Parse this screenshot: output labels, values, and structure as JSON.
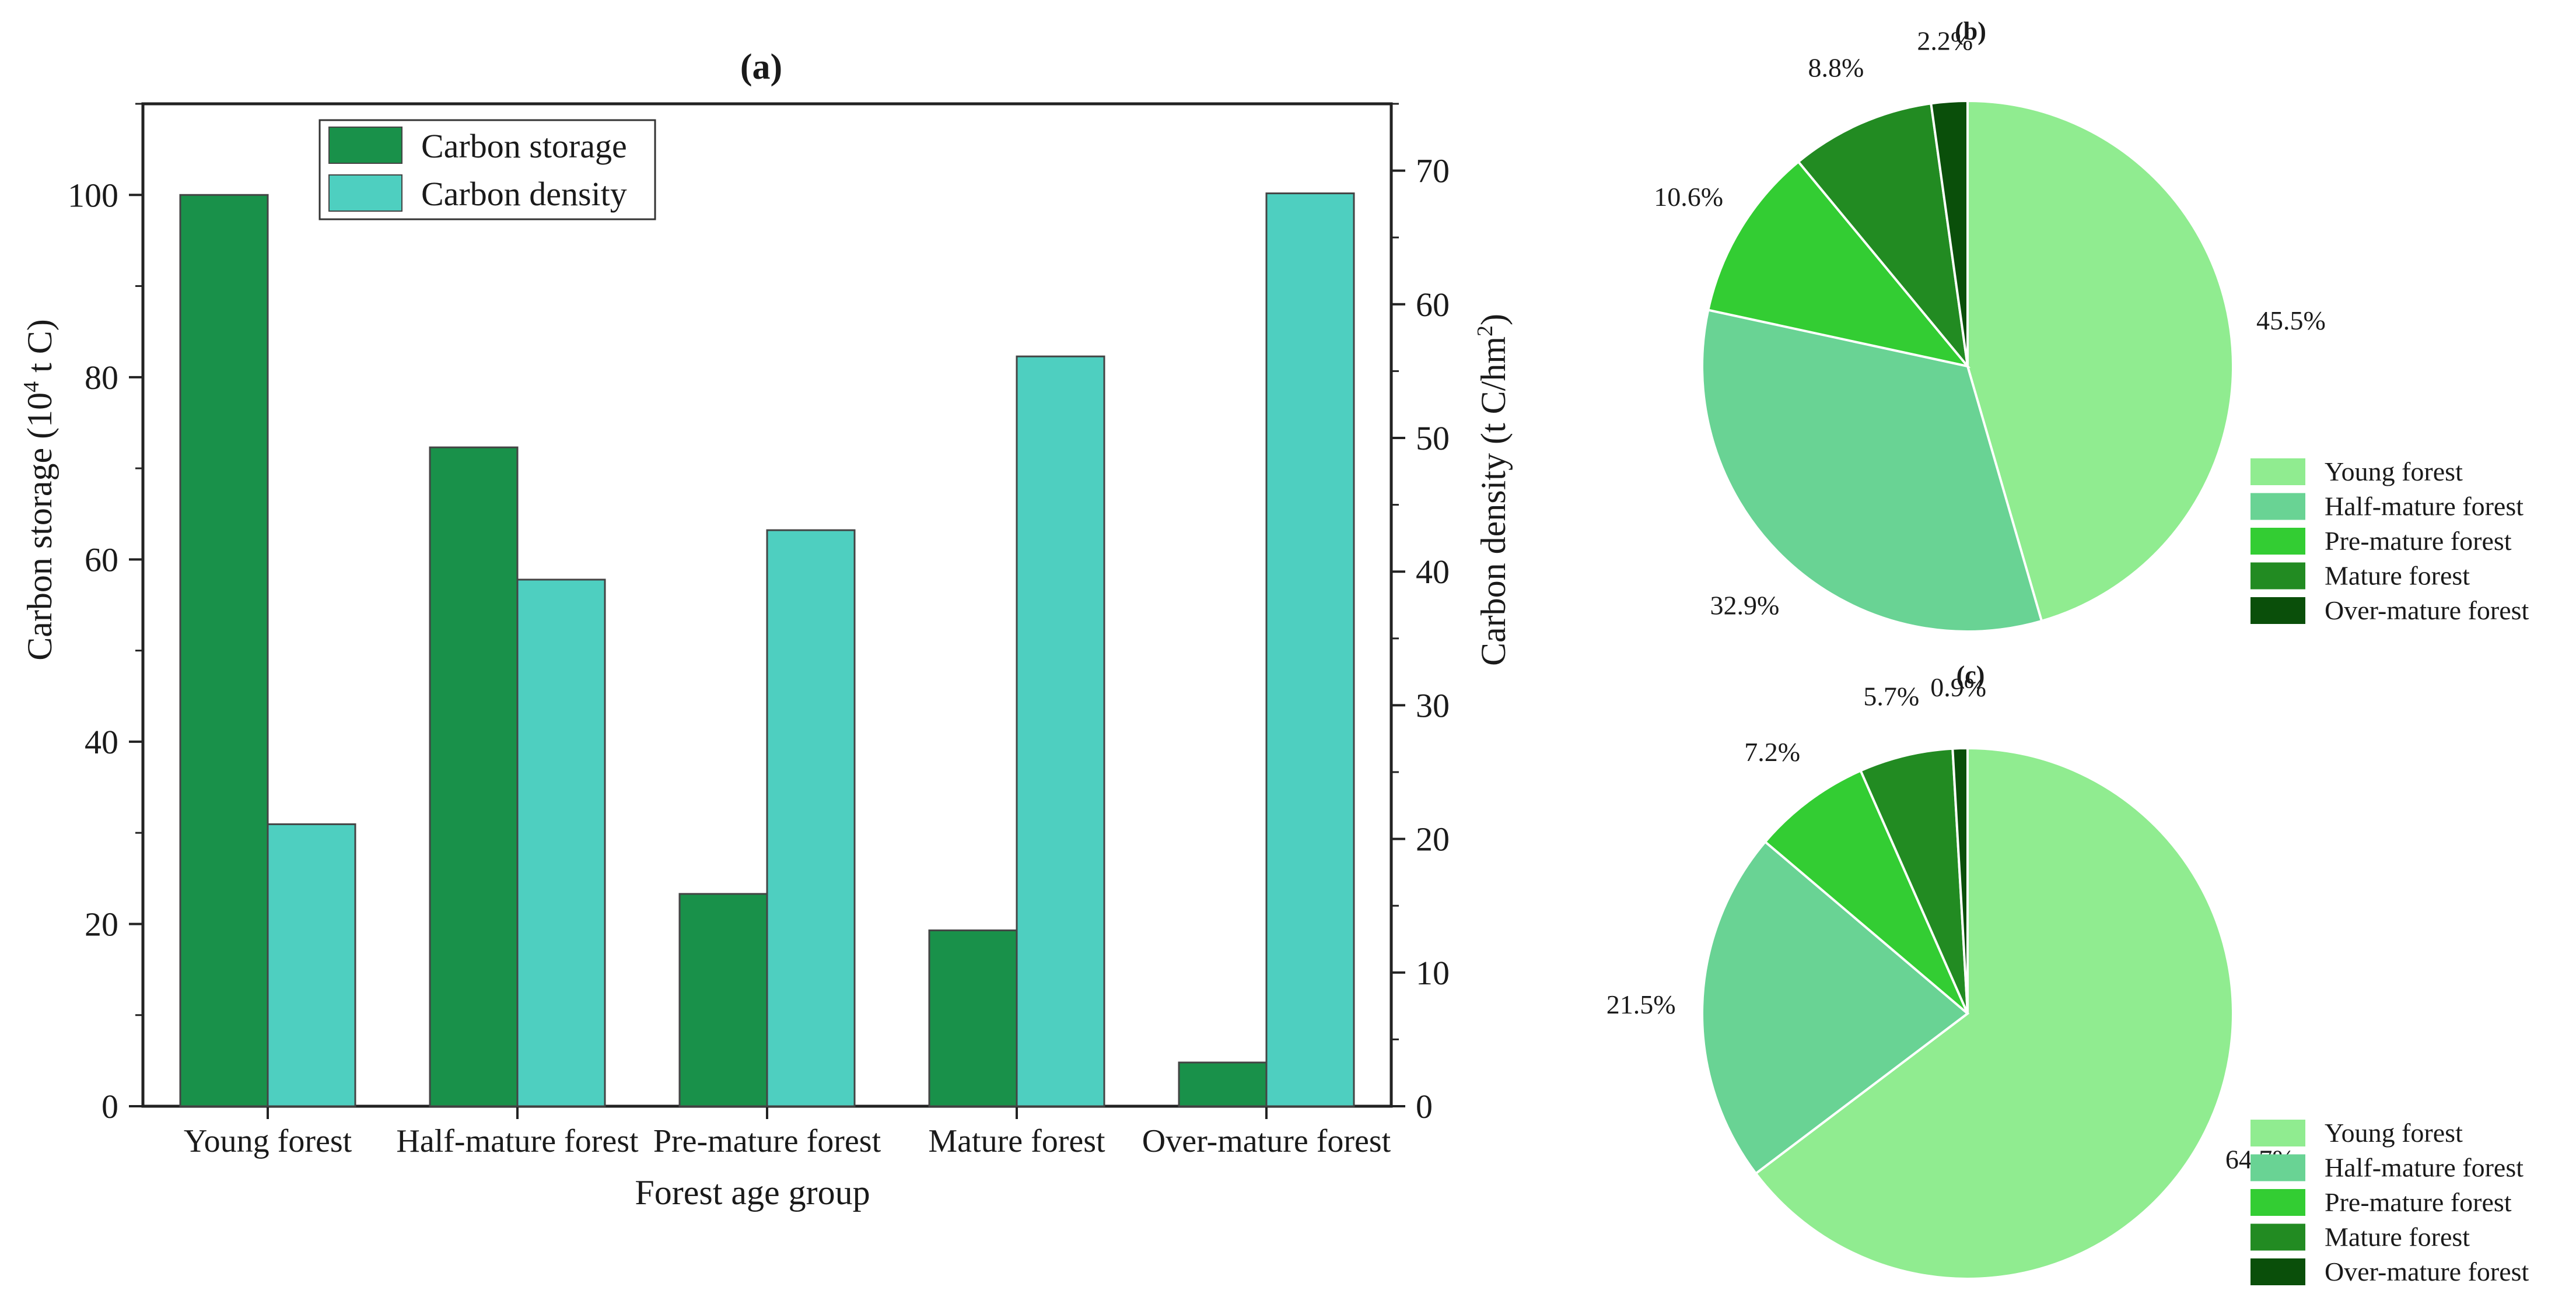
{
  "colors": {
    "storage": "#19914a",
    "density": "#4ecfc0",
    "pie": [
      "#90ec90",
      "#69d394",
      "#33cd33",
      "#228b22",
      "#0a4f0a"
    ]
  },
  "chart_data": [
    {
      "type": "bar",
      "title": "(a)",
      "categories": [
        "Young forest",
        "Half-mature forest",
        "Pre-mature forest",
        "Mature forest",
        "Over-mature forest"
      ],
      "xlabel": "Forest age group",
      "ylabel_left": "Carbon storage (10",
      "ylabel_left_sup": "4",
      "ylabel_left_end": " t C)",
      "ylabel_right": "Carbon density (t C/hm",
      "ylabel_right_sup": "2",
      "ylabel_right_end": ")",
      "ylim_left": [
        0,
        110
      ],
      "ylim_right": [
        0,
        75
      ],
      "yticks_left": [
        0,
        20,
        40,
        60,
        80,
        100
      ],
      "yticks_right": [
        0,
        10,
        20,
        30,
        40,
        50,
        60,
        70
      ],
      "legend_position": "top-left",
      "series": [
        {
          "name": "Carbon storage",
          "axis": "left",
          "values": [
            100,
            72.3,
            23.3,
            19.3,
            4.8
          ]
        },
        {
          "name": "Carbon density",
          "axis": "right",
          "values": [
            21.1,
            39.4,
            43.1,
            56.1,
            68.3
          ]
        }
      ]
    },
    {
      "type": "pie",
      "title": "(b)",
      "labels": [
        "Young forest",
        "Half-mature forest",
        "Pre-mature forest",
        "Mature forest",
        "Over-mature forest"
      ],
      "values": [
        45.5,
        32.9,
        10.6,
        8.8,
        2.2
      ],
      "value_labels": [
        "45.5%",
        "32.9%",
        "10.6%",
        "8.8%",
        "2.2%"
      ],
      "legend_position": "bottom-right"
    },
    {
      "type": "pie",
      "title": "(c)",
      "labels": [
        "Young forest",
        "Half-mature forest",
        "Pre-mature forest",
        "Mature forest",
        "Over-mature forest"
      ],
      "values": [
        64.7,
        21.5,
        7.2,
        5.7,
        0.9
      ],
      "value_labels": [
        "64.7%",
        "21.5%",
        "7.2%",
        "5.7%",
        "0.9%"
      ],
      "legend_position": "bottom-right"
    }
  ]
}
